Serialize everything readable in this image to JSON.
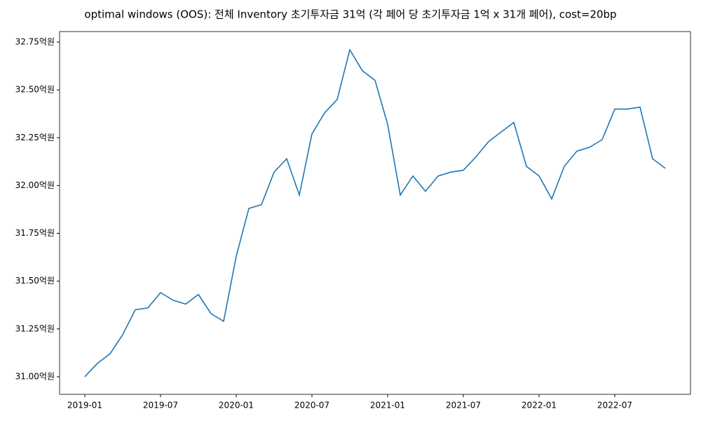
{
  "chart_data": {
    "type": "line",
    "title": "optimal windows (OOS): 전체 Inventory 초기투자금 31억 (각 페어 당 초기투자금 1억 x 31개 페어), cost=20bp",
    "x": [
      "2019-01",
      "2019-02",
      "2019-03",
      "2019-04",
      "2019-05",
      "2019-06",
      "2019-07",
      "2019-08",
      "2019-09",
      "2019-10",
      "2019-11",
      "2019-12",
      "2020-01",
      "2020-02",
      "2020-03",
      "2020-04",
      "2020-05",
      "2020-06",
      "2020-07",
      "2020-08",
      "2020-09",
      "2020-10",
      "2020-11",
      "2020-12",
      "2021-01",
      "2021-02",
      "2021-03",
      "2021-04",
      "2021-05",
      "2021-06",
      "2021-07",
      "2021-08",
      "2021-09",
      "2021-10",
      "2021-11",
      "2021-12",
      "2022-01",
      "2022-02",
      "2022-03",
      "2022-04",
      "2022-05",
      "2022-06",
      "2022-07",
      "2022-08",
      "2022-09",
      "2022-10",
      "2022-11"
    ],
    "series": [
      {
        "color": "#1f77b4",
        "values": [
          31.0,
          31.07,
          31.12,
          31.22,
          31.35,
          31.36,
          31.44,
          31.4,
          31.38,
          31.43,
          31.33,
          31.29,
          31.63,
          31.88,
          31.9,
          32.07,
          32.14,
          31.95,
          32.27,
          32.38,
          32.45,
          32.71,
          32.6,
          32.55,
          32.32,
          31.95,
          32.05,
          31.97,
          32.05,
          32.07,
          32.08,
          32.15,
          32.23,
          32.28,
          32.33,
          32.1,
          32.05,
          31.93,
          32.1,
          32.18,
          32.2,
          32.24,
          32.4,
          32.4,
          32.41,
          32.14,
          32.09
        ]
      }
    ],
    "xlim": [
      "2018-11",
      "2023-01"
    ],
    "xticks": [
      "2019-01",
      "2019-07",
      "2020-01",
      "2020-07",
      "2021-01",
      "2021-07",
      "2022-01",
      "2022-07"
    ],
    "ylim": [
      30.908,
      32.805
    ],
    "yticks": [
      {
        "value": 31.0,
        "label": "31.00억원"
      },
      {
        "value": 31.25,
        "label": "31.25억원"
      },
      {
        "value": 31.5,
        "label": "31.50억원"
      },
      {
        "value": 31.75,
        "label": "31.75억원"
      },
      {
        "value": 32.0,
        "label": "32.00억원"
      },
      {
        "value": 32.25,
        "label": "32.25억원"
      },
      {
        "value": 32.5,
        "label": "32.50억원"
      },
      {
        "value": 32.75,
        "label": "32.75억원"
      }
    ]
  }
}
